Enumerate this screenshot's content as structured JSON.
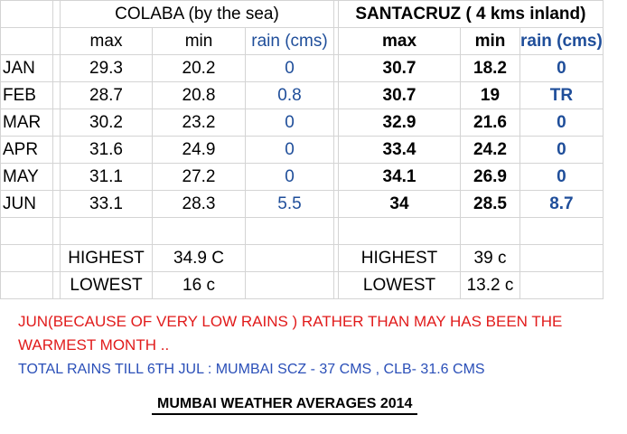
{
  "colaba": {
    "header": "COLABA (by the sea)",
    "col_max": "max",
    "col_min": "min",
    "col_rain": "rain (cms)"
  },
  "santacruz": {
    "header": "SANTACRUZ ( 4 kms inland)",
    "col_max": "max",
    "col_min": "min",
    "col_rain": "rain (cms)"
  },
  "rows": [
    {
      "month": "JAN",
      "c_max": "29.3",
      "c_min": "20.2",
      "c_rain": "0",
      "s_max": "30.7",
      "s_min": "18.2",
      "s_rain": "0"
    },
    {
      "month": "FEB",
      "c_max": "28.7",
      "c_min": "20.8",
      "c_rain": "0.8",
      "s_max": "30.7",
      "s_min": "19",
      "s_rain": "TR"
    },
    {
      "month": "MAR",
      "c_max": "30.2",
      "c_min": "23.2",
      "c_rain": "0",
      "s_max": "32.9",
      "s_min": "21.6",
      "s_rain": "0"
    },
    {
      "month": "APR",
      "c_max": "31.6",
      "c_min": "24.9",
      "c_rain": "0",
      "s_max": "33.4",
      "s_min": "24.2",
      "s_rain": "0"
    },
    {
      "month": "MAY",
      "c_max": "31.1",
      "c_min": "27.2",
      "c_rain": "0",
      "s_max": "34.1",
      "s_min": "26.9",
      "s_rain": "0"
    },
    {
      "month": "JUN",
      "c_max": "33.1",
      "c_min": "28.3",
      "c_rain": "5.5",
      "s_max": "34",
      "s_min": "28.5",
      "s_rain": "8.7"
    }
  ],
  "extremes": {
    "highest_label": "HIGHEST",
    "lowest_label": "LOWEST",
    "colaba_highest": "34.9 C",
    "colaba_lowest": "16 c",
    "santacruz_highest": "39 c",
    "santacruz_lowest": "13.2 c"
  },
  "notes": {
    "warm_note": "JUN(BECAUSE OF VERY LOW RAINS ) RATHER THAN MAY HAS BEEN THE WARMEST MONTH ..",
    "rain_note": "TOTAL RAINS TILL 6TH JUL  : MUMBAI SCZ - 37 CMS , CLB- 31.6 CMS",
    "title": "MUMBAI WEATHER AVERAGES  2014"
  },
  "colors": {
    "blue": "#1f4e9a",
    "red": "#e11b1b",
    "note_blue": "#2a4fb8"
  }
}
